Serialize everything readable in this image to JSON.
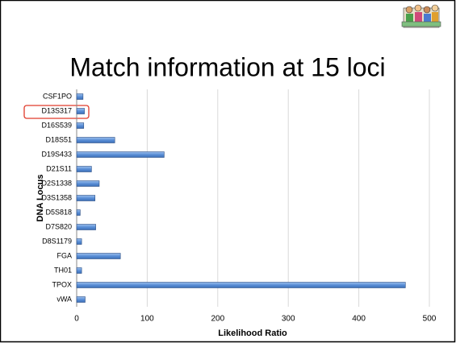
{
  "chart_data": {
    "type": "bar",
    "orientation": "horizontal",
    "title": "Match information at 15 loci",
    "x_label": "Likelihood Ratio",
    "y_label": "DNA Locus",
    "categories": [
      "CSF1PO",
      "D13S317",
      "D16S539",
      "D18S51",
      "D19S433",
      "D21S11",
      "D2S1338",
      "D3S1358",
      "D5S818",
      "D7S820",
      "D8S1179",
      "FGA",
      "TH01",
      "TPOX",
      "vWA"
    ],
    "values": [
      9,
      11,
      10,
      54,
      124,
      21,
      32,
      26,
      5,
      27,
      7,
      62,
      7,
      466,
      12
    ],
    "color": "#5b8fd6",
    "xlim": [
      0,
      500
    ],
    "xticks": [
      0,
      100,
      200,
      300,
      400,
      500
    ],
    "grid": true
  }
}
